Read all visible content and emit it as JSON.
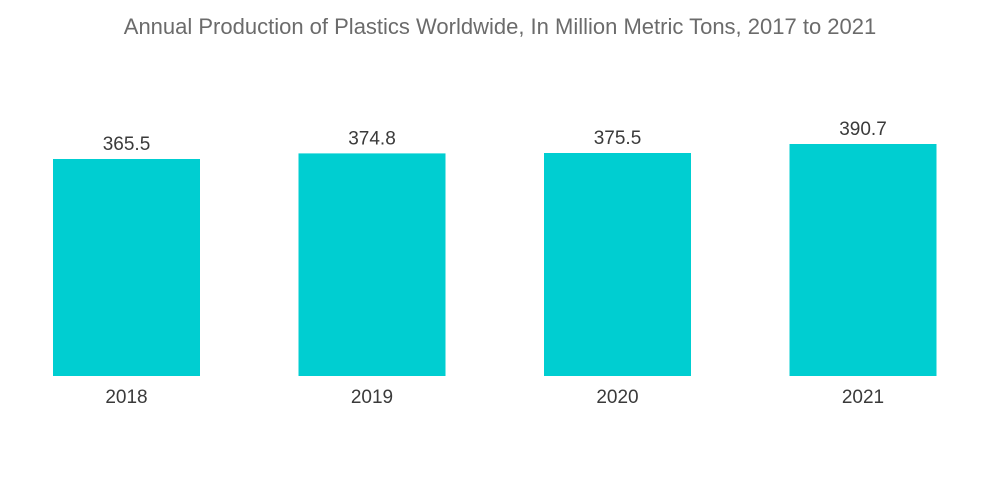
{
  "chart_data": {
    "type": "bar",
    "title": "Annual Production of Plastics Worldwide, In Million Metric Tons,  2017 to 2021",
    "categories": [
      "2018",
      "2019",
      "2020",
      "2021"
    ],
    "values": [
      365.5,
      374.8,
      375.5,
      390.7
    ],
    "data_labels": [
      "365.5",
      "374.8",
      "375.5",
      "390.7"
    ],
    "xlabel": "",
    "ylabel": "",
    "ylim": [
      0,
      390.7
    ],
    "grid": false,
    "legend": "none",
    "colors": {
      "bar": "#00CED1"
    }
  }
}
